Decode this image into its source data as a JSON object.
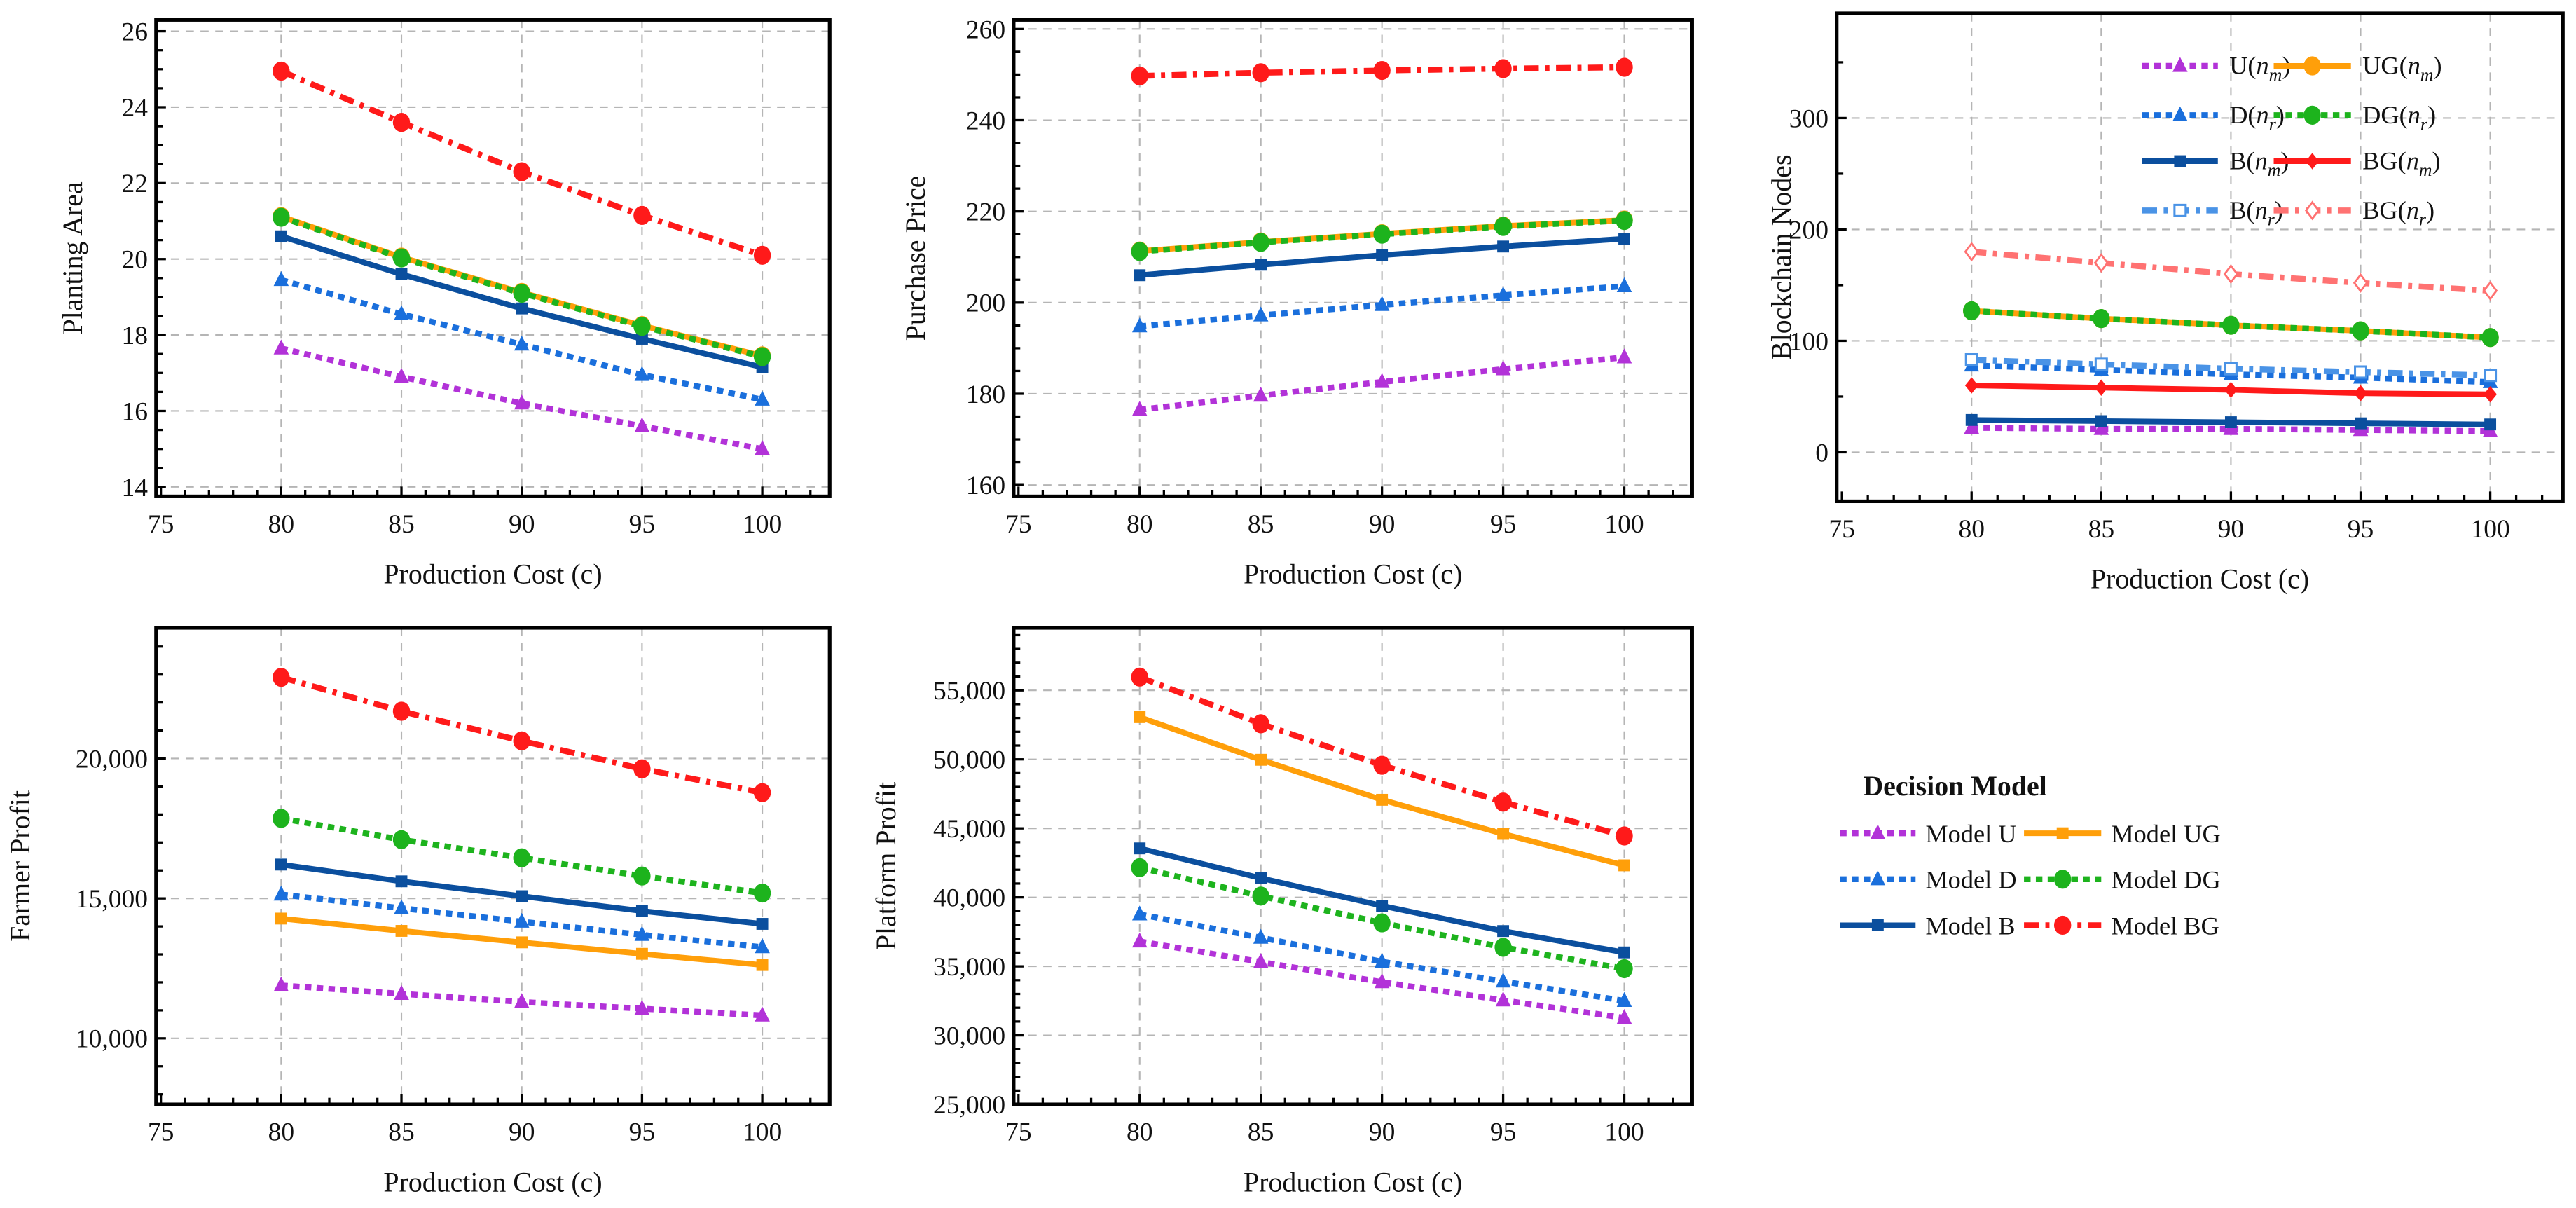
{
  "chart_data": [
    {
      "type": "line",
      "xlabel": "Production Cost (c)",
      "ylabel": "Planting Area",
      "xlim": [
        74.8,
        102.8
      ],
      "ylim": [
        13.75,
        26.3
      ],
      "xticks": [
        75,
        80,
        85,
        90,
        95,
        100
      ],
      "xtick_labels": [
        "75",
        "80",
        "85",
        "90",
        "95",
        "100"
      ],
      "yticks": [
        14,
        16,
        18,
        20,
        22,
        24,
        26
      ],
      "ytick_labels": [
        "14",
        "16",
        "18",
        "20",
        "22",
        "24",
        "26"
      ],
      "yminor_step": 0.5,
      "grid": true,
      "x": [
        80,
        85,
        90,
        95,
        100
      ],
      "series": [
        {
          "name": "Model U",
          "color": "#b232d8",
          "style": "dotted",
          "marker": "triangle",
          "values": [
            17.65,
            16.9,
            16.2,
            15.6,
            15.0
          ]
        },
        {
          "name": "Model D",
          "color": "#1a6fdc",
          "style": "dotted",
          "marker": "triangle",
          "values": [
            19.45,
            18.55,
            17.75,
            16.95,
            16.3
          ]
        },
        {
          "name": "Model B",
          "color": "#0b4f9e",
          "style": "solid",
          "marker": "square",
          "values": [
            20.6,
            19.6,
            18.7,
            17.9,
            17.15
          ]
        },
        {
          "name": "Model UG",
          "color": "#ff9f0a",
          "style": "solid",
          "marker": "circle",
          "values": [
            21.12,
            20.05,
            19.12,
            18.25,
            17.45
          ]
        },
        {
          "name": "Model DG",
          "color": "#1db31d",
          "style": "dotted",
          "marker": "circle",
          "values": [
            21.1,
            20.03,
            19.1,
            18.23,
            17.43
          ]
        },
        {
          "name": "Model BG",
          "color": "#ff1a1a",
          "style": "dashdot",
          "marker": "circle",
          "values": [
            24.95,
            23.6,
            22.3,
            21.15,
            20.1
          ]
        }
      ]
    },
    {
      "type": "line",
      "xlabel": "Production Cost (c)",
      "ylabel": "Purchase Price",
      "xlim": [
        74.8,
        102.8
      ],
      "ylim": [
        157.5,
        262
      ],
      "xticks": [
        75,
        80,
        85,
        90,
        95,
        100
      ],
      "xtick_labels": [
        "75",
        "80",
        "85",
        "90",
        "95",
        "100"
      ],
      "yticks": [
        160,
        180,
        200,
        220,
        240,
        260
      ],
      "ytick_labels": [
        "160",
        "180",
        "200",
        "220",
        "240",
        "260"
      ],
      "yminor_step": 5,
      "grid": true,
      "x": [
        80,
        85,
        90,
        95,
        100
      ],
      "series": [
        {
          "name": "Model U",
          "color": "#b232d8",
          "style": "dotted",
          "marker": "triangle",
          "values": [
            176.5,
            179.6,
            182.6,
            185.4,
            188.0
          ]
        },
        {
          "name": "Model D",
          "color": "#1a6fdc",
          "style": "dotted",
          "marker": "triangle",
          "values": [
            194.8,
            197.2,
            199.5,
            201.6,
            203.6
          ]
        },
        {
          "name": "Model B",
          "color": "#0b4f9e",
          "style": "solid",
          "marker": "square",
          "values": [
            206.0,
            208.3,
            210.4,
            212.3,
            214.0
          ]
        },
        {
          "name": "Model UG",
          "color": "#ff9f0a",
          "style": "solid",
          "marker": "circle",
          "values": [
            211.3,
            213.3,
            215.1,
            216.8,
            218.1
          ]
        },
        {
          "name": "Model DG",
          "color": "#1db31d",
          "style": "dotted",
          "marker": "circle",
          "values": [
            211.2,
            213.2,
            215.0,
            216.7,
            218.0
          ]
        },
        {
          "name": "Model BG",
          "color": "#ff1a1a",
          "style": "dashdot",
          "marker": "circle",
          "values": [
            249.7,
            250.4,
            250.9,
            251.3,
            251.6
          ]
        }
      ]
    },
    {
      "type": "line",
      "xlabel": "Production Cost (c)",
      "ylabel": "Blockchain Nodes",
      "xlim": [
        74.8,
        102.8
      ],
      "ylim": [
        -44,
        394
      ],
      "xticks": [
        75,
        80,
        85,
        90,
        95,
        100
      ],
      "xtick_labels": [
        "75",
        "80",
        "85",
        "90",
        "95",
        "100"
      ],
      "yticks": [
        0,
        100,
        200,
        300
      ],
      "ytick_labels": [
        "0",
        "100",
        "200",
        "300"
      ],
      "yminor_step": 50,
      "grid": true,
      "legend_position": "top-right",
      "x": [
        80,
        85,
        90,
        95,
        100
      ],
      "series": [
        {
          "name": "U(n_m)",
          "color": "#b232d8",
          "style": "dotted",
          "marker": "triangle",
          "values": [
            22,
            21,
            21,
            20,
            19
          ]
        },
        {
          "name": "UG(n_m)",
          "color": "#ff9f0a",
          "style": "solid",
          "marker": "circle",
          "values": [
            127,
            120,
            114,
            109,
            103
          ]
        },
        {
          "name": "D(n_r)",
          "color": "#1a6fdc",
          "style": "dotted",
          "marker": "triangle",
          "values": [
            78,
            74,
            70,
            67,
            63
          ]
        },
        {
          "name": "DG(n_r)",
          "color": "#1db31d",
          "style": "dotted",
          "marker": "circle",
          "values": [
            127,
            120,
            114,
            109,
            103
          ]
        },
        {
          "name": "B(n_m)",
          "color": "#0b4f9e",
          "style": "solid",
          "marker": "square",
          "values": [
            29,
            28,
            27,
            26,
            25
          ]
        },
        {
          "name": "BG(n_m)",
          "color": "#ff1a1a",
          "style": "solid",
          "marker": "diamond",
          "values": [
            60,
            58,
            56,
            53,
            52
          ]
        },
        {
          "name": "B(n_r)",
          "color": "#4a93e6",
          "style": "dashdot",
          "marker": "open-square",
          "values": [
            83,
            79,
            75,
            72,
            69
          ]
        },
        {
          "name": "BG(n_r)",
          "color": "#ff7272",
          "style": "dashdot",
          "marker": "open-diamond",
          "values": [
            180,
            170,
            160,
            152,
            145
          ]
        }
      ]
    },
    {
      "type": "line",
      "xlabel": "Production Cost (c)",
      "ylabel": "Farmer Profit",
      "xlim": [
        74.8,
        102.8
      ],
      "ylim": [
        7640,
        24670
      ],
      "xticks": [
        75,
        80,
        85,
        90,
        95,
        100
      ],
      "xtick_labels": [
        "75",
        "80",
        "85",
        "90",
        "95",
        "100"
      ],
      "yticks": [
        10000,
        15000,
        20000
      ],
      "ytick_labels": [
        "10,000",
        "15,000",
        "20,000"
      ],
      "yminor_step": 1000,
      "grid": true,
      "x": [
        80,
        85,
        90,
        95,
        100
      ],
      "series": [
        {
          "name": "Model U",
          "color": "#b232d8",
          "style": "dotted",
          "marker": "triangle",
          "values": [
            11890,
            11590,
            11300,
            11060,
            10820
          ]
        },
        {
          "name": "Model D",
          "color": "#1a6fdc",
          "style": "dotted",
          "marker": "triangle",
          "values": [
            15140,
            14650,
            14170,
            13700,
            13260
          ]
        },
        {
          "name": "Model B",
          "color": "#0b4f9e",
          "style": "solid",
          "marker": "square",
          "values": [
            16210,
            15610,
            15080,
            14550,
            14090
          ]
        },
        {
          "name": "Model UG",
          "color": "#ff9f0a",
          "style": "solid",
          "marker": "square",
          "values": [
            14280,
            13840,
            13430,
            13020,
            12620
          ]
        },
        {
          "name": "Model DG",
          "color": "#1db31d",
          "style": "dotted",
          "marker": "circle",
          "values": [
            17860,
            17100,
            16450,
            15800,
            15190
          ]
        },
        {
          "name": "Model BG",
          "color": "#ff1a1a",
          "style": "dashdot",
          "marker": "circle",
          "values": [
            22900,
            21690,
            20630,
            19630,
            18780
          ]
        }
      ]
    },
    {
      "type": "line",
      "xlabel": "Production Cost (c)",
      "ylabel": "Platform Profit",
      "xlim": [
        74.8,
        102.8
      ],
      "ylim": [
        25000,
        59530
      ],
      "xticks": [
        75,
        80,
        85,
        90,
        95,
        100
      ],
      "xtick_labels": [
        "75",
        "80",
        "85",
        "90",
        "95",
        "100"
      ],
      "yticks": [
        25000,
        30000,
        35000,
        40000,
        45000,
        50000,
        55000
      ],
      "ytick_labels": [
        "25,000",
        "30,000",
        "35,000",
        "40,000",
        "45,000",
        "50,000",
        "55,000"
      ],
      "yminor_step": 1000,
      "grid": true,
      "x": [
        80,
        85,
        90,
        95,
        100
      ],
      "series": [
        {
          "name": "Model U",
          "color": "#b232d8",
          "style": "dotted",
          "marker": "triangle",
          "values": [
            36810,
            35320,
            33860,
            32540,
            31270
          ]
        },
        {
          "name": "Model D",
          "color": "#1a6fdc",
          "style": "dotted",
          "marker": "triangle",
          "values": [
            38770,
            37080,
            35340,
            33910,
            32500
          ]
        },
        {
          "name": "Model B",
          "color": "#0b4f9e",
          "style": "solid",
          "marker": "square",
          "values": [
            43550,
            41390,
            39390,
            37560,
            36010
          ]
        },
        {
          "name": "Model UG",
          "color": "#ff9f0a",
          "style": "solid",
          "marker": "square",
          "values": [
            53060,
            49970,
            47070,
            44600,
            42320
          ]
        },
        {
          "name": "Model DG",
          "color": "#1db31d",
          "style": "dotted",
          "marker": "circle",
          "values": [
            42150,
            40090,
            38150,
            36380,
            34830
          ]
        },
        {
          "name": "Model BG",
          "color": "#ff1a1a",
          "style": "dashdot",
          "marker": "circle",
          "values": [
            55960,
            52580,
            49570,
            46900,
            44450
          ]
        }
      ]
    }
  ],
  "legend": {
    "title": "Decision Model",
    "entries": [
      {
        "label": "Model U",
        "color": "#b232d8",
        "style": "dotted",
        "marker": "triangle"
      },
      {
        "label": "Model UG",
        "color": "#ff9f0a",
        "style": "solid",
        "marker": "square"
      },
      {
        "label": "Model D",
        "color": "#1a6fdc",
        "style": "dotted",
        "marker": "triangle"
      },
      {
        "label": "Model DG",
        "color": "#1db31d",
        "style": "dotted",
        "marker": "circle"
      },
      {
        "label": "Model B",
        "color": "#0b4f9e",
        "style": "solid",
        "marker": "square"
      },
      {
        "label": "Model BG",
        "color": "#ff1a1a",
        "style": "dashdot",
        "marker": "circle"
      }
    ]
  }
}
